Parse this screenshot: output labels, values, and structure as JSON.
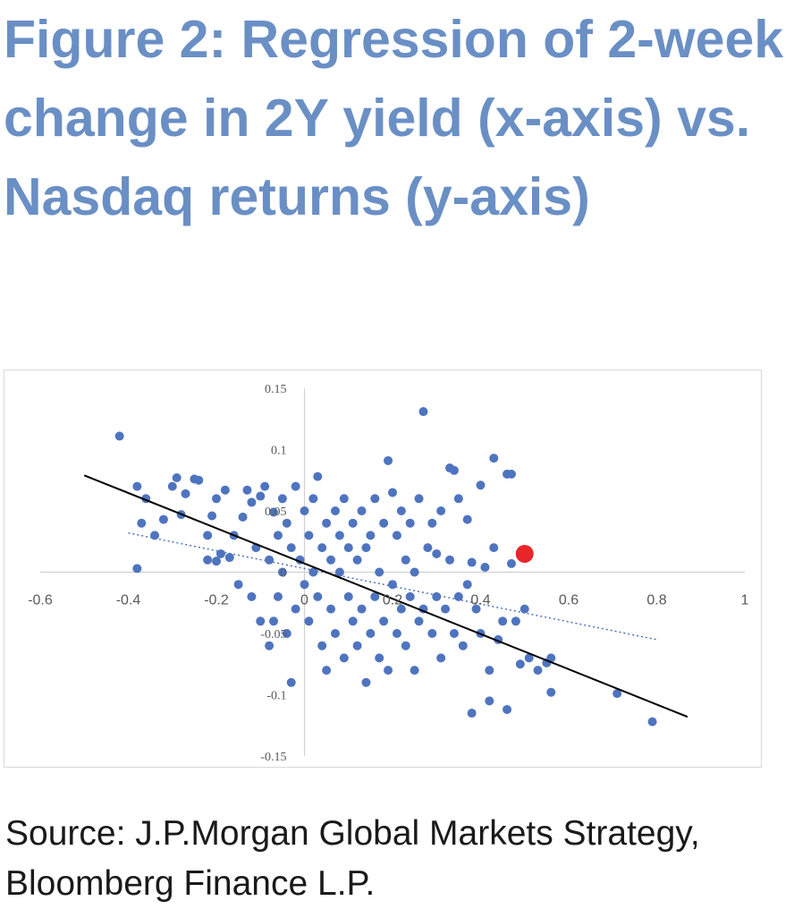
{
  "title": "Figure 2: Regression of 2-week change in 2Y yield (x-axis) vs. Nasdaq returns (y-axis)",
  "source": "Source: J.P.Morgan Global Markets Strategy, Bloomberg Finance L.P.",
  "chart_data": {
    "type": "scatter",
    "title": "Figure 2: Regression of 2-week change in 2Y yield (x-axis) vs. Nasdaq returns (y-axis)",
    "xlabel": "",
    "ylabel": "",
    "xlim": [
      -0.6,
      1
    ],
    "ylim": [
      -0.15,
      0.15
    ],
    "x_ticks": [
      -0.6,
      -0.4,
      -0.2,
      0,
      0.2,
      0.4,
      0.6,
      0.8,
      1
    ],
    "x_tick_labels": [
      "-0.6",
      "-0.4",
      "-0.2",
      "0",
      "0.2",
      "0.4",
      "0.6",
      "0.8",
      "1"
    ],
    "y_ticks": [
      0.15,
      0.1,
      0.05,
      0,
      -0.05,
      -0.1,
      -0.15
    ],
    "y_tick_labels": [
      "0.15",
      "0.1",
      "0.05",
      "0",
      "-0.05",
      "-0.1",
      "-0.15"
    ],
    "grid": false,
    "colors": {
      "points": "#4f74bf",
      "highlight": "#e8262a",
      "fit_line": "#000000",
      "trend_line": "#4f74bf",
      "title": "#6a8fc5"
    },
    "fit_line": {
      "style": "solid",
      "x": [
        -0.5,
        0.87
      ],
      "y": [
        0.079,
        -0.118
      ]
    },
    "trend_line": {
      "style": "dotted",
      "x": [
        -0.4,
        0.8
      ],
      "y": [
        0.032,
        -0.055
      ]
    },
    "highlight_point": {
      "x": 0.5,
      "y": 0.015
    },
    "series": [
      {
        "points": [
          [
            -0.42,
            0.111
          ],
          [
            -0.38,
            0.07
          ],
          [
            -0.37,
            0.04
          ],
          [
            -0.36,
            0.06
          ],
          [
            -0.34,
            0.03
          ],
          [
            -0.32,
            0.043
          ],
          [
            -0.38,
            0.003
          ],
          [
            -0.3,
            0.07
          ],
          [
            -0.29,
            0.077
          ],
          [
            -0.28,
            0.047
          ],
          [
            -0.27,
            0.064
          ],
          [
            -0.25,
            0.076
          ],
          [
            -0.24,
            0.075
          ],
          [
            -0.22,
            0.03
          ],
          [
            -0.21,
            0.046
          ],
          [
            -0.2,
            0.06
          ],
          [
            -0.19,
            0.015
          ],
          [
            -0.18,
            0.067
          ],
          [
            -0.17,
            0.012
          ],
          [
            -0.16,
            0.03
          ],
          [
            -0.2,
            0.009
          ],
          [
            -0.22,
            0.01
          ],
          [
            -0.15,
            -0.01
          ],
          [
            -0.14,
            0.045
          ],
          [
            -0.13,
            0.067
          ],
          [
            -0.12,
            0.057
          ],
          [
            -0.12,
            -0.02
          ],
          [
            -0.11,
            0.02
          ],
          [
            -0.1,
            0.062
          ],
          [
            -0.1,
            -0.04
          ],
          [
            -0.09,
            0.07
          ],
          [
            -0.08,
            0.01
          ],
          [
            -0.08,
            -0.06
          ],
          [
            -0.07,
            0.049
          ],
          [
            -0.07,
            -0.04
          ],
          [
            -0.06,
            0.03
          ],
          [
            -0.06,
            -0.02
          ],
          [
            -0.05,
            0.06
          ],
          [
            -0.05,
            0.0
          ],
          [
            -0.04,
            -0.05
          ],
          [
            -0.04,
            0.04
          ],
          [
            -0.03,
            0.02
          ],
          [
            -0.03,
            -0.09
          ],
          [
            -0.02,
            -0.03
          ],
          [
            -0.02,
            0.07
          ],
          [
            -0.01,
            0.01
          ],
          [
            0.0,
            -0.01
          ],
          [
            0.0,
            0.05
          ],
          [
            0.01,
            -0.04
          ],
          [
            0.01,
            0.03
          ],
          [
            0.02,
            0.0
          ],
          [
            0.02,
            0.06
          ],
          [
            0.03,
            -0.02
          ],
          [
            0.03,
            0.078
          ],
          [
            0.04,
            -0.06
          ],
          [
            0.04,
            0.02
          ],
          [
            0.05,
            -0.08
          ],
          [
            0.05,
            0.04
          ],
          [
            0.06,
            0.01
          ],
          [
            0.06,
            -0.03
          ],
          [
            0.07,
            0.05
          ],
          [
            0.07,
            -0.05
          ],
          [
            0.08,
            0.0
          ],
          [
            0.08,
            0.03
          ],
          [
            0.09,
            -0.07
          ],
          [
            0.09,
            0.06
          ],
          [
            0.1,
            -0.02
          ],
          [
            0.1,
            0.02
          ],
          [
            0.11,
            -0.04
          ],
          [
            0.11,
            0.04
          ],
          [
            0.12,
            -0.06
          ],
          [
            0.12,
            0.01
          ],
          [
            0.13,
            -0.03
          ],
          [
            0.13,
            0.05
          ],
          [
            0.14,
            -0.09
          ],
          [
            0.14,
            0.02
          ],
          [
            0.15,
            -0.05
          ],
          [
            0.15,
            0.03
          ],
          [
            0.16,
            -0.02
          ],
          [
            0.16,
            0.06
          ],
          [
            0.17,
            -0.07
          ],
          [
            0.17,
            0.0
          ],
          [
            0.18,
            -0.04
          ],
          [
            0.18,
            0.04
          ],
          [
            0.19,
            0.091
          ],
          [
            0.19,
            -0.08
          ],
          [
            0.2,
            -0.01
          ],
          [
            0.2,
            0.065
          ],
          [
            0.21,
            -0.05
          ],
          [
            0.21,
            0.03
          ],
          [
            0.22,
            -0.03
          ],
          [
            0.22,
            0.05
          ],
          [
            0.23,
            -0.06
          ],
          [
            0.23,
            0.01
          ],
          [
            0.24,
            -0.02
          ],
          [
            0.24,
            0.04
          ],
          [
            0.25,
            -0.08
          ],
          [
            0.25,
            0.0
          ],
          [
            0.26,
            -0.04
          ],
          [
            0.26,
            0.06
          ],
          [
            0.27,
            0.131
          ],
          [
            0.27,
            -0.03
          ],
          [
            0.28,
            0.02
          ],
          [
            0.29,
            -0.05
          ],
          [
            0.29,
            0.04
          ],
          [
            0.3,
            -0.02
          ],
          [
            0.3,
            0.015
          ],
          [
            0.31,
            -0.07
          ],
          [
            0.31,
            0.05
          ],
          [
            0.32,
            -0.03
          ],
          [
            0.33,
            0.085
          ],
          [
            0.33,
            0.01
          ],
          [
            0.34,
            0.083
          ],
          [
            0.34,
            -0.05
          ],
          [
            0.35,
            0.06
          ],
          [
            0.35,
            -0.02
          ],
          [
            0.36,
            -0.06
          ],
          [
            0.37,
            0.043
          ],
          [
            0.37,
            -0.01
          ],
          [
            0.38,
            0.008
          ],
          [
            0.38,
            -0.115
          ],
          [
            0.39,
            -0.03
          ],
          [
            0.4,
            0.071
          ],
          [
            0.4,
            -0.05
          ],
          [
            0.41,
            0.004
          ],
          [
            0.42,
            -0.105
          ],
          [
            0.42,
            -0.08
          ],
          [
            0.43,
            0.093
          ],
          [
            0.43,
            0.02
          ],
          [
            0.44,
            -0.055
          ],
          [
            0.45,
            -0.04
          ],
          [
            0.46,
            -0.112
          ],
          [
            0.46,
            0.08
          ],
          [
            0.47,
            0.08
          ],
          [
            0.47,
            0.007
          ],
          [
            0.48,
            -0.04
          ],
          [
            0.49,
            -0.075
          ],
          [
            0.5,
            -0.03
          ],
          [
            0.51,
            -0.07
          ],
          [
            0.53,
            -0.08
          ],
          [
            0.55,
            -0.074
          ],
          [
            0.56,
            -0.07
          ],
          [
            0.56,
            -0.098
          ],
          [
            0.71,
            -0.099
          ],
          [
            0.79,
            -0.122
          ]
        ]
      }
    ]
  }
}
